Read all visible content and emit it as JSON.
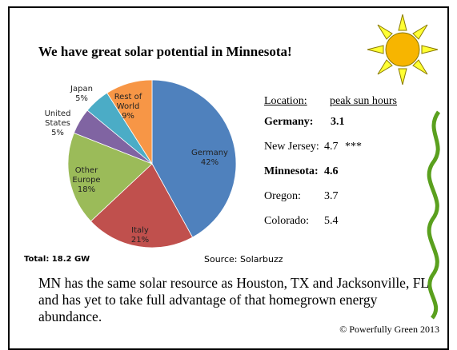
{
  "title": "We have great solar potential in Minnesota!",
  "chart_data": {
    "type": "pie",
    "categories": [
      "Germany",
      "Italy",
      "Other Europe",
      "United States",
      "Japan",
      "Rest of World"
    ],
    "values": [
      42,
      21,
      18,
      5,
      5,
      9
    ],
    "value_labels": [
      "42%",
      "21%",
      "18%",
      "5%",
      "5%",
      "9%"
    ],
    "colors": [
      "#4f81bd",
      "#c0504d",
      "#9bbb59",
      "#8064a2",
      "#4bacc6",
      "#f79646"
    ],
    "total": "Total: 18.2 GW",
    "source": "Source: Solarbuzz"
  },
  "table": {
    "header": [
      "Location:",
      "peak sun hours"
    ],
    "rows": [
      {
        "location": "Germany:",
        "value": 3.1,
        "bold": true
      },
      {
        "location": "New Jersey:",
        "value": 4.7,
        "note": "***",
        "bold": false
      },
      {
        "location": "Minnesota:",
        "value": 4.6,
        "bold": true
      },
      {
        "location": "Oregon:",
        "value": 3.7,
        "bold": false
      },
      {
        "location": "Colorado:",
        "value": 5.4,
        "bold": false
      }
    ]
  },
  "paragraph": "MN has the same solar resource as Houston, TX and Jacksonville, FL and has yet to take full advantage of that homegrown energy abundance.",
  "copyright": "© Powerfully Green 2013"
}
